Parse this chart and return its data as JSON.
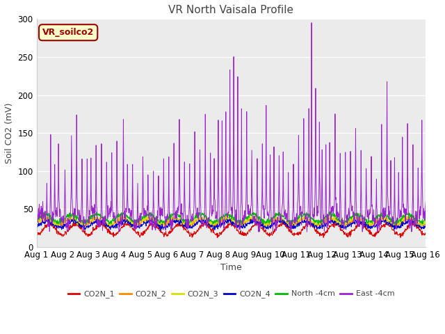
{
  "title": "VR North Vaisala Profile",
  "xlabel": "Time",
  "ylabel": "Soil CO2 (mV)",
  "xlim": [
    0,
    15
  ],
  "ylim": [
    0,
    300
  ],
  "yticks": [
    0,
    50,
    100,
    150,
    200,
    250,
    300
  ],
  "xtick_labels": [
    "Aug 1",
    "Aug 2",
    "Aug 3",
    "Aug 4",
    "Aug 5",
    "Aug 6",
    "Aug 7",
    "Aug 8",
    "Aug 9",
    "Aug 10",
    "Aug 11",
    "Aug 12",
    "Aug 13",
    "Aug 14",
    "Aug 15",
    "Aug 16"
  ],
  "annotation_text": "VR_soilco2",
  "annotation_box_color": "#ffffcc",
  "annotation_border_color": "#990000",
  "annotation_text_color": "#990000",
  "legend_labels": [
    "CO2N_1",
    "CO2N_2",
    "CO2N_3",
    "CO2N_4",
    "North -4cm",
    "East -4cm"
  ],
  "line_colors": [
    "#dd0000",
    "#ff8800",
    "#dddd00",
    "#0000cc",
    "#00bb00",
    "#9922cc"
  ],
  "bg_color": "#ffffff",
  "plot_bg_color": "#ebebeb",
  "title_fontsize": 11,
  "label_fontsize": 9,
  "tick_fontsize": 8.5
}
